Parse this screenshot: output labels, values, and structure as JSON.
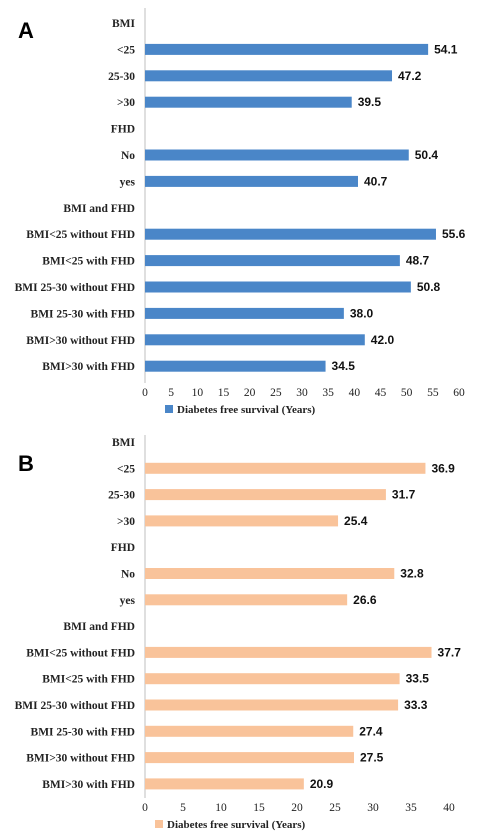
{
  "panels": [
    {
      "label": "A",
      "color": "#4a86c8",
      "chart_data": {
        "type": "bar",
        "orientation": "horizontal",
        "categories": [
          "BMI",
          "<25",
          "25-30",
          ">30",
          "FHD",
          "No",
          "yes",
          "BMI and FHD",
          "BMI<25 without FHD",
          "BMI<25 with FHD",
          "BMI 25-30 without FHD",
          "BMI 25-30 with FHD",
          "BMI>30 without FHD",
          "BMI>30 with FHD"
        ],
        "values": [
          null,
          54.1,
          47.2,
          39.5,
          null,
          50.4,
          40.7,
          null,
          55.6,
          48.7,
          50.8,
          38.0,
          42.0,
          34.5
        ],
        "value_labels": [
          "",
          "54.1",
          "47.2",
          "39.5",
          "",
          "50.4",
          "40.7",
          "",
          "55.6",
          "48.7",
          "50.8",
          "38.0",
          "42.0",
          "34.5"
        ],
        "xlim": [
          0,
          60
        ],
        "xticks": [
          "0",
          "5",
          "10",
          "15",
          "20",
          "25",
          "30",
          "35",
          "40",
          "45",
          "50",
          "55",
          "60"
        ],
        "legend": "Diabetes free survival (Years)",
        "legend_position": "bottom"
      }
    },
    {
      "label": "B",
      "color": "#f9c39a",
      "chart_data": {
        "type": "bar",
        "orientation": "horizontal",
        "categories": [
          "BMI",
          "<25",
          "25-30",
          ">30",
          "FHD",
          "No",
          "yes",
          "BMI and FHD",
          "BMI<25 without FHD",
          "BMI<25 with FHD",
          "BMI 25-30 without FHD",
          "BMI 25-30 with FHD",
          "BMI>30 without FHD",
          "BMI>30 with FHD"
        ],
        "values": [
          null,
          36.9,
          31.7,
          25.4,
          null,
          32.8,
          26.6,
          null,
          37.7,
          33.5,
          33.3,
          27.4,
          27.5,
          20.9
        ],
        "value_labels": [
          "",
          "36.9",
          "31.7",
          "25.4",
          "",
          "32.8",
          "26.6",
          "",
          "37.7",
          "33.5",
          "33.3",
          "27.4",
          "27.5",
          "20.9"
        ],
        "xlim": [
          0,
          40
        ],
        "xticks": [
          "0",
          "5",
          "10",
          "15",
          "20",
          "25",
          "30",
          "35",
          "40"
        ],
        "legend": "Diabetes free survival (Years)",
        "legend_position": "bottom"
      }
    }
  ]
}
